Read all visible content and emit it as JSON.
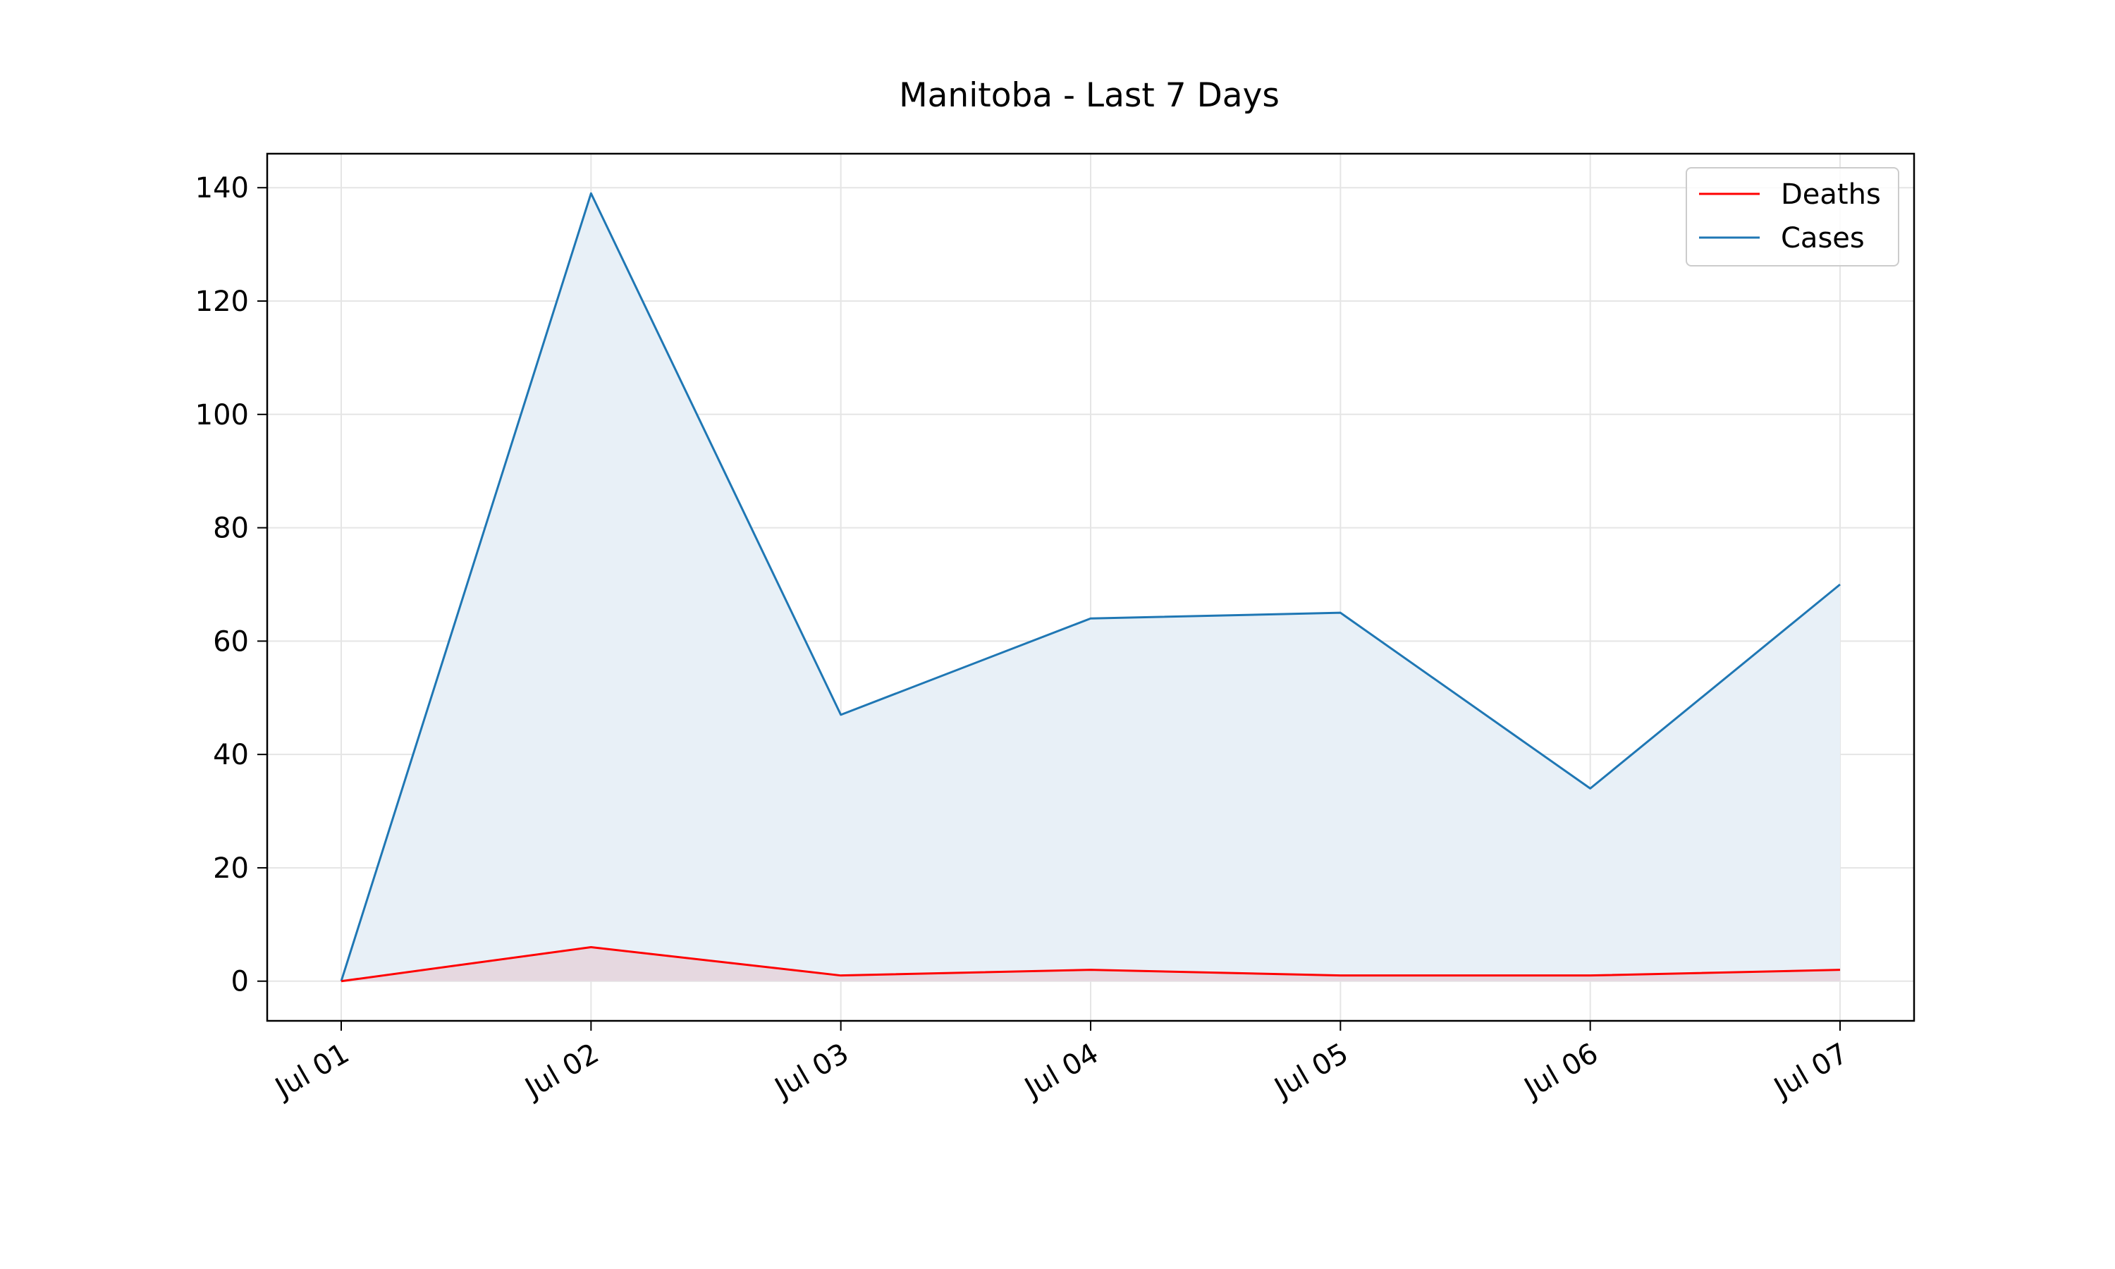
{
  "chart_data": {
    "type": "line",
    "title": "Manitoba - Last 7 Days",
    "xlabel": "",
    "ylabel": "",
    "x": [
      "Jul 01",
      "Jul 02",
      "Jul 03",
      "Jul 04",
      "Jul 05",
      "Jul 06",
      "Jul 07"
    ],
    "ylim": [
      -7,
      146
    ],
    "yticks": [
      0,
      20,
      40,
      60,
      80,
      100,
      120,
      140
    ],
    "grid": true,
    "legend": "top-right",
    "series": [
      {
        "name": "Deaths",
        "color": "#ff0000",
        "fill": "#e6d8e0",
        "values": [
          0,
          6,
          1,
          2,
          1,
          1,
          2
        ]
      },
      {
        "name": "Cases",
        "color": "#1f77b4",
        "fill": "#e8f0f7",
        "values": [
          0,
          139,
          47,
          64,
          65,
          34,
          70
        ]
      }
    ]
  }
}
